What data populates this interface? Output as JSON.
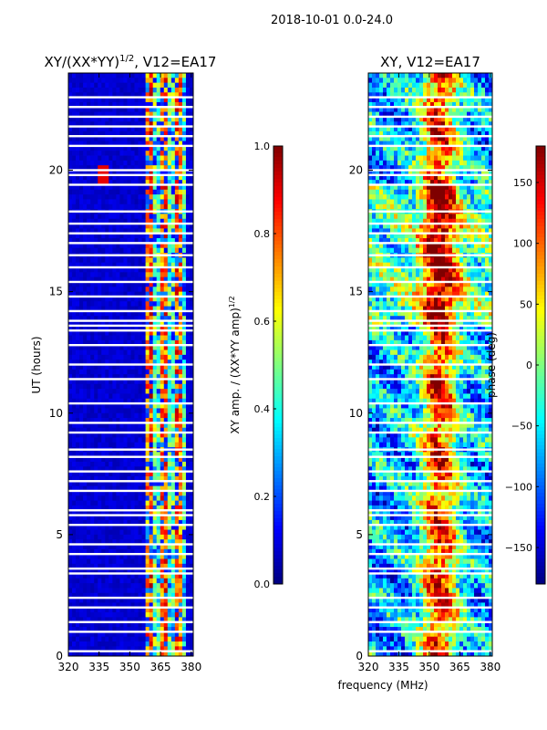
{
  "figure_title": "2018-10-01 0.0-24.0",
  "colors": {
    "jet_stops": [
      "#00007f",
      "#0000ff",
      "#007fff",
      "#00ffff",
      "#7fff7f",
      "#ffff00",
      "#ff7f00",
      "#ff0000",
      "#7f0000"
    ],
    "gap": "#ffffff"
  },
  "chart_data": [
    {
      "type": "heatmap",
      "title_main": "XY/(XX*YY)",
      "title_sup": "1/2",
      "title_suffix": ", V12=EA17",
      "xlabel": "",
      "ylabel": "UT (hours)",
      "xlim": [
        320,
        381
      ],
      "ylim": [
        0,
        24
      ],
      "xticks": [
        320,
        335,
        350,
        365,
        380
      ],
      "yticks": [
        0,
        5,
        10,
        15,
        20
      ],
      "colorbar": {
        "label_main": "XY amp. / (XX*YY amp)",
        "label_sup": "1/2",
        "range": [
          0.0,
          1.0
        ],
        "ticks": [
          "0.0",
          "0.2",
          "0.4",
          "0.6",
          "0.8",
          "1.0"
        ]
      }
    },
    {
      "type": "heatmap",
      "title": "XY, V12=EA17",
      "xlabel": "frequency (MHz)",
      "ylabel": "",
      "xlim": [
        320,
        381
      ],
      "ylim": [
        0,
        24
      ],
      "xticks": [
        320,
        335,
        350,
        365,
        380
      ],
      "yticks": [
        0,
        5,
        10,
        15,
        20
      ],
      "colorbar": {
        "label": "phase (deg)",
        "range": [
          -180,
          180
        ],
        "ticks": [
          "150",
          "100",
          "50",
          "0",
          "−50",
          "−100",
          "−150"
        ]
      }
    }
  ],
  "gap_rows_hours": [
    0.2,
    1.0,
    1.4,
    2.0,
    2.4,
    3.4,
    3.6,
    4.2,
    4.6,
    5.4,
    5.8,
    6.0,
    6.8,
    7.2,
    7.6,
    8.2,
    8.5,
    9.2,
    9.6,
    10.4,
    11.4,
    12.0,
    12.8,
    13.4,
    13.6,
    13.8,
    14.2,
    14.8,
    15.4,
    16.0,
    16.5,
    17.0,
    17.4,
    17.8,
    18.3,
    19.4,
    19.8,
    20.0,
    21.0,
    21.4,
    21.8,
    22.2,
    22.6,
    23.0
  ]
}
